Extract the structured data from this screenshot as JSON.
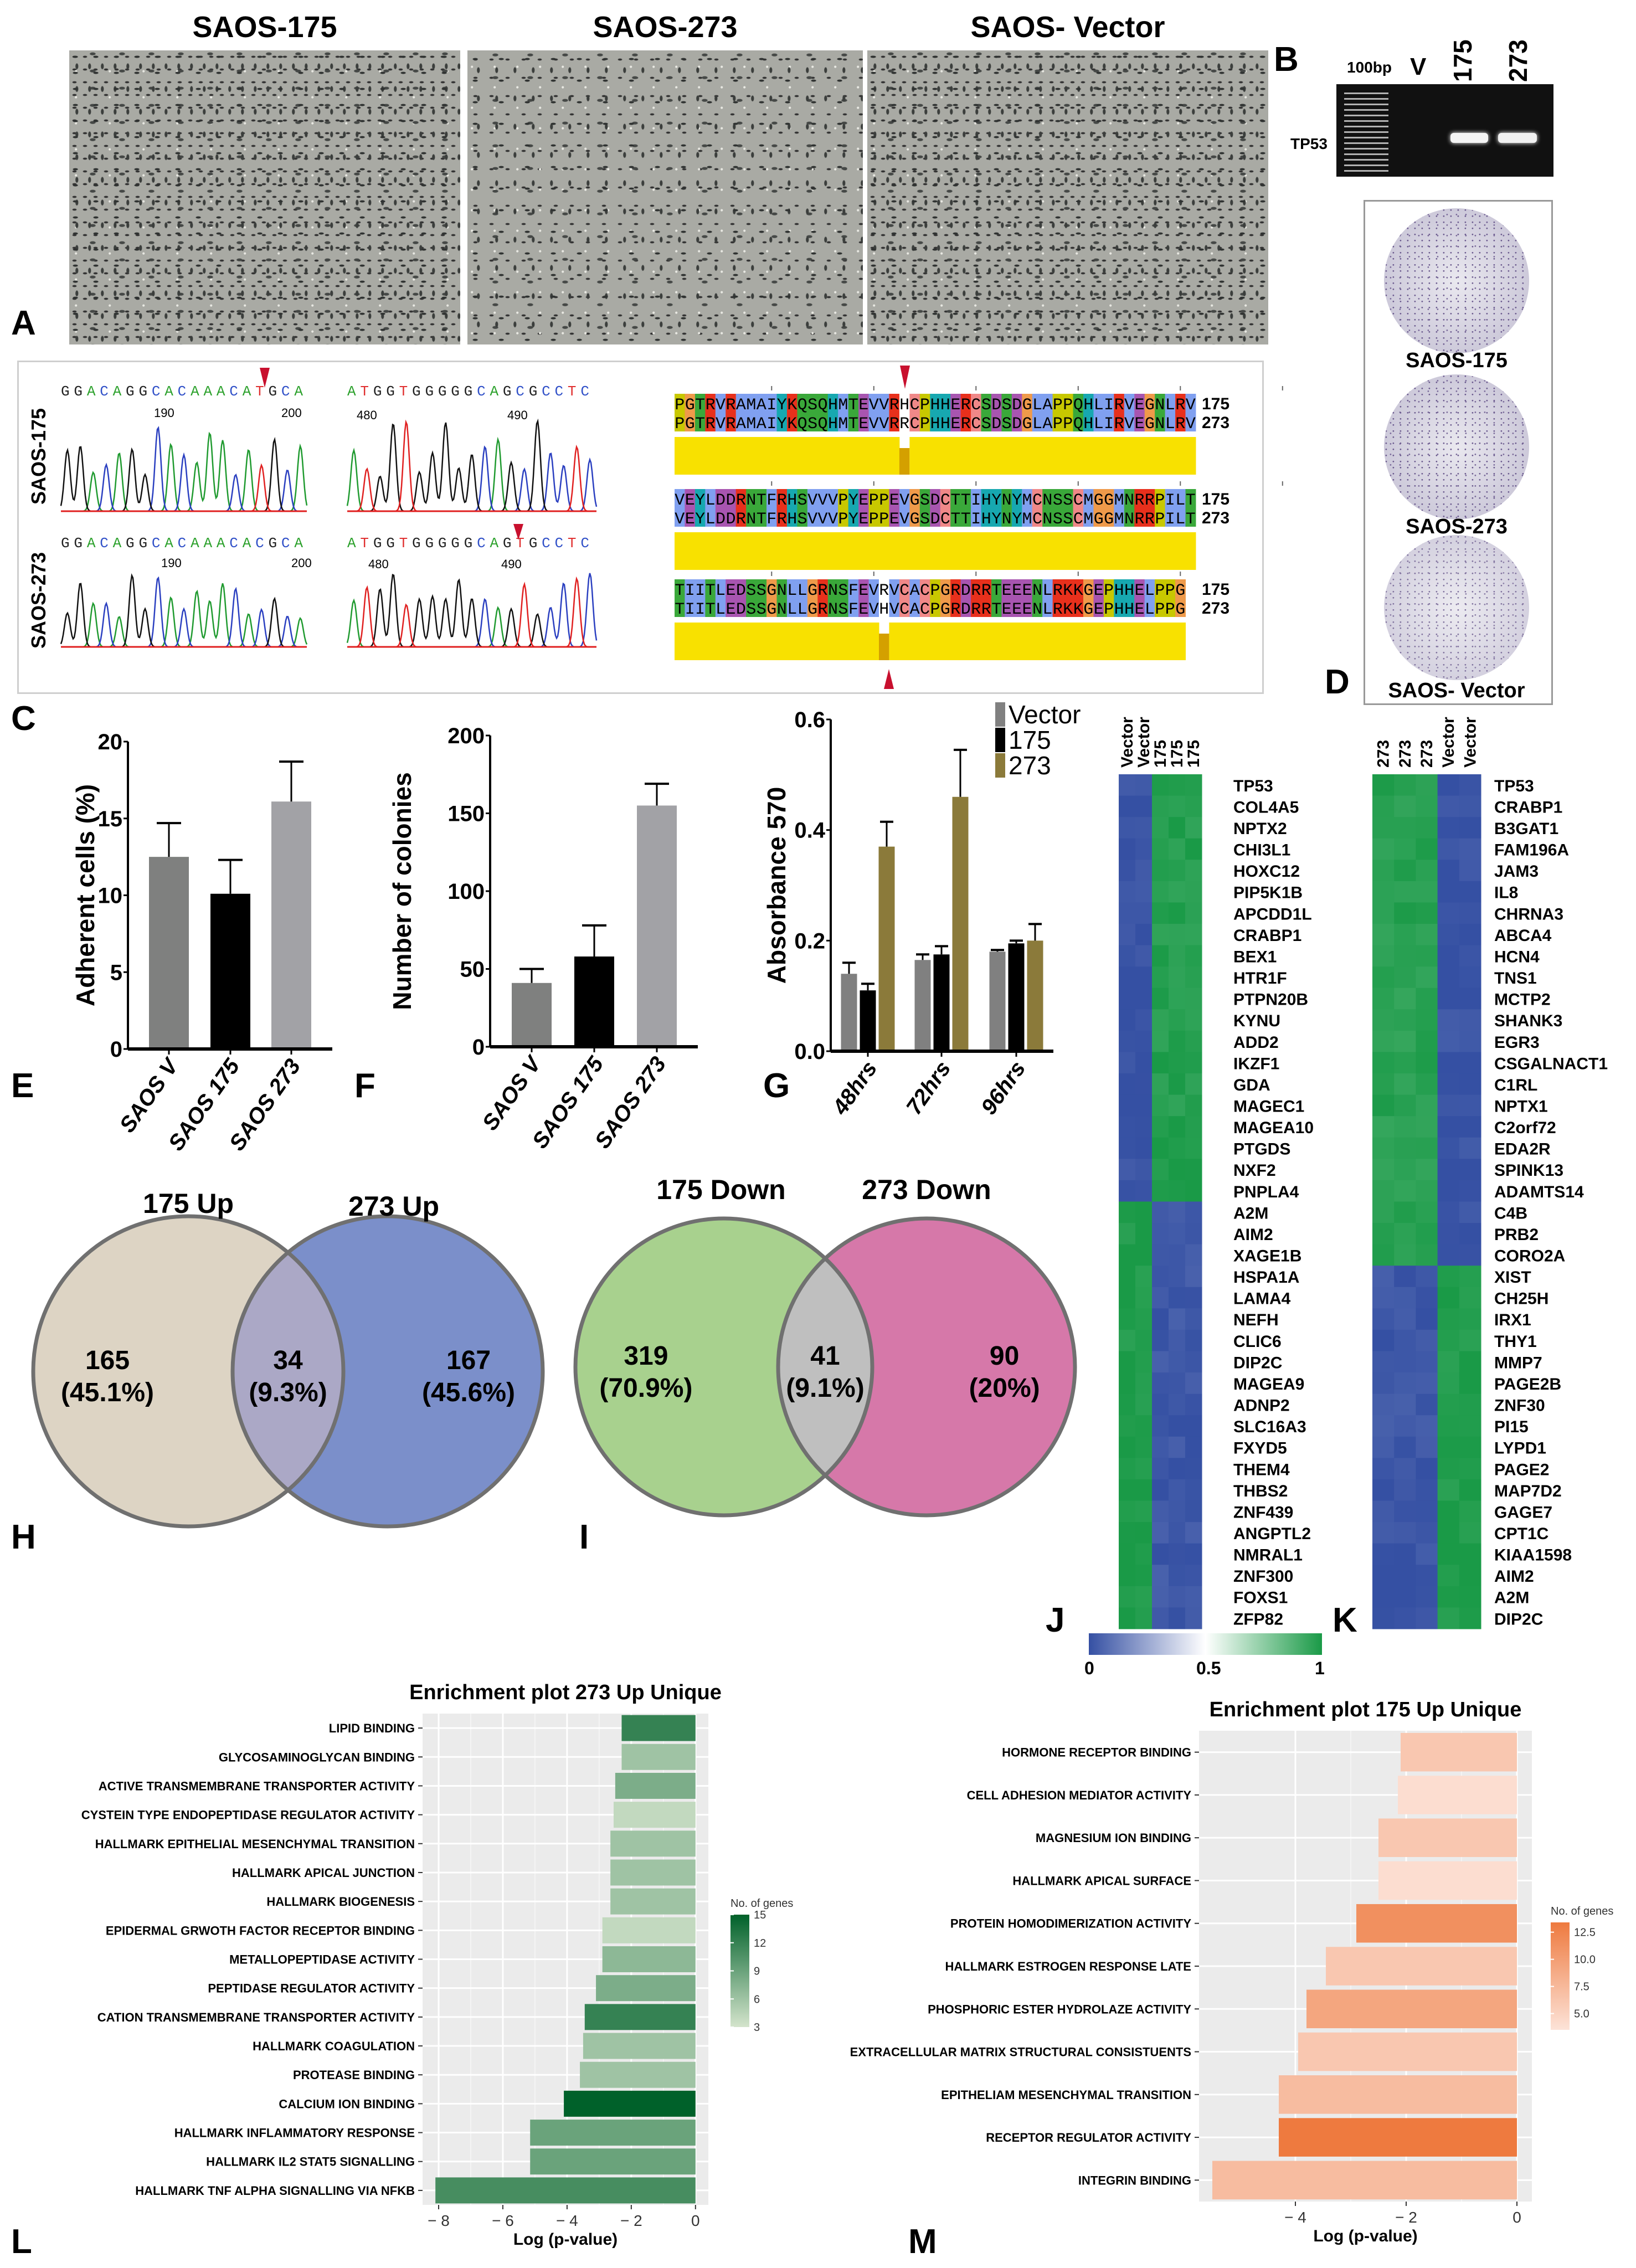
{
  "panel_labels": {
    "A": "A",
    "B": "B",
    "C": "C",
    "D": "D",
    "E": "E",
    "F": "F",
    "G": "G",
    "H": "H",
    "I": "I",
    "J": "J",
    "K": "K",
    "L": "L",
    "M": "M"
  },
  "micrographs": [
    {
      "title": "SAOS-175"
    },
    {
      "title": "SAOS-273"
    },
    {
      "title": "SAOS- Vector"
    }
  ],
  "gel": {
    "ladder": "100bp",
    "lanes": [
      "V",
      "175",
      "273"
    ],
    "band_label": "TP53"
  },
  "colony_plates": [
    "SAOS-175",
    "SAOS-273",
    "SAOS- Vector"
  ],
  "chromatograms": [
    {
      "label": "SAOS-175",
      "left_seq": "GGACAGGCACAAACATGCA",
      "left_ticks": [
        "190",
        "200"
      ],
      "right_seq": "ATGGTGGGGGCAGCGCCTC",
      "right_ticks": [
        "480",
        "490"
      ]
    },
    {
      "label": "SAOS-273",
      "left_seq": "GGACAGGCACAAACACGCA",
      "left_ticks": [
        "190",
        "200"
      ],
      "right_seq": "ATGGTGGGGGCAGTGCCTC",
      "right_ticks": [
        "480",
        "490"
      ]
    }
  ],
  "alignment": {
    "row_labels": [
      "175",
      "273"
    ],
    "blocks": [
      {
        "seq_175": "PGTRVRAMAIYKQSQHMTEVVRHCPHHERCSDSDGLAPPQHLIRVEGNLRV",
        "seq_273": "PGTRVRAMAIYKQSQHMTEVVRRCPHHERCSDSDGLAPPQHLIRVEGNLRV"
      },
      {
        "seq_175": "VEYLDDRNTFRHSVVVPYEPPEVGSDCTTIHYNYMCNSSCMGGMNRRPILT",
        "seq_273": "VEYLDDRNTFRHSVVVPYEPPEVGSDCTTIHYNYMCNSSCMGGMNRRPILT"
      },
      {
        "seq_175": "TIITLEDSSGNLLGRNSFEVRVCACPGRDRRTEEENLRKKGEPHHELPPG",
        "seq_273": "TIITLEDSSGNLLGRNSFEVHVCACPGRDRRTEEENLRKKGEPHHELPPG"
      }
    ]
  },
  "heatmap_colorbar": {
    "labels": [
      "0",
      "0.5",
      "1"
    ],
    "low_color": "#3550a3",
    "mid_color": "#ffffff",
    "high_color": "#1a9a47"
  },
  "chart_data": [
    {
      "id": "E",
      "type": "bar",
      "title": "",
      "xlabel": "",
      "ylabel": "Adherent cells (%)",
      "ylim": [
        0,
        20
      ],
      "yticks": [
        0,
        5,
        10,
        15,
        20
      ],
      "ytick_labels": [
        "0",
        "5",
        "10",
        "15",
        "20"
      ],
      "categories": [
        "SAOS V",
        "SAOS 175",
        "SAOS 273"
      ],
      "series": [
        {
          "name": "",
          "values": [
            12.5,
            10.1,
            16.1
          ],
          "errors": [
            2.2,
            2.2,
            2.6
          ]
        }
      ],
      "bar_colors": [
        "#7f807f",
        "#000000",
        "#a2a2a6"
      ]
    },
    {
      "id": "F",
      "type": "bar",
      "title": "",
      "xlabel": "",
      "ylabel": "Number of colonies",
      "ylim": [
        0,
        200
      ],
      "yticks": [
        0,
        50,
        100,
        150,
        200
      ],
      "ytick_labels": [
        "0",
        "50",
        "100",
        "150",
        "200"
      ],
      "categories": [
        "SAOS V",
        "SAOS 175",
        "SAOS 273"
      ],
      "series": [
        {
          "name": "",
          "values": [
            41,
            58,
            155
          ],
          "errors": [
            9,
            20,
            14
          ]
        }
      ],
      "bar_colors": [
        "#7f807f",
        "#000000",
        "#a2a2a6"
      ]
    },
    {
      "id": "G",
      "type": "bar",
      "title": "",
      "xlabel": "",
      "ylabel": "Absorbance 570",
      "ylim": [
        0,
        0.6
      ],
      "yticks": [
        0,
        0.2,
        0.4,
        0.6
      ],
      "ytick_labels": [
        "0.0",
        "0.2",
        "0.4",
        "0.6"
      ],
      "categories": [
        "48hrs",
        "72hrs",
        "96hrs"
      ],
      "legend": "top-right",
      "series": [
        {
          "name": "Vector",
          "values": [
            0.14,
            0.165,
            0.18
          ],
          "errors": [
            0.02,
            0.01,
            0.003
          ],
          "color": "#808080"
        },
        {
          "name": "175",
          "values": [
            0.11,
            0.175,
            0.195
          ],
          "errors": [
            0.012,
            0.015,
            0.005
          ],
          "color": "#000000"
        },
        {
          "name": "273",
          "values": [
            0.37,
            0.46,
            0.2
          ],
          "errors": [
            0.045,
            0.085,
            0.03
          ],
          "color": "#8b7a3a"
        }
      ]
    },
    {
      "id": "H",
      "type": "venn",
      "sets": [
        "175 Up",
        "273 Up"
      ],
      "regions": [
        {
          "count": "165",
          "percent": "(45.1%)"
        },
        {
          "count": "34",
          "percent": "(9.3%)"
        },
        {
          "count": "167",
          "percent": "(45.6%)"
        }
      ],
      "colors": [
        "#ddd4c4",
        "#7b8fca",
        "#aba8c6"
      ]
    },
    {
      "id": "I",
      "type": "venn",
      "sets": [
        "175 Down",
        "273 Down"
      ],
      "regions": [
        {
          "count": "319",
          "percent": "(70.9%)"
        },
        {
          "count": "41",
          "percent": "(9.1%)"
        },
        {
          "count": "90",
          "percent": "(20%)"
        }
      ],
      "colors": [
        "#a8d18e",
        "#d678a9",
        "#bfbfbf"
      ]
    },
    {
      "id": "J",
      "type": "heatmap",
      "columns": [
        "Vector",
        "Vector",
        "175",
        "175",
        "175"
      ],
      "groups": [
        {
          "genes": [
            "TP53",
            "COL4A5",
            "NPTX2",
            "CHI3L1",
            "HOXC12",
            "PIP5K1B",
            "APCDD1L",
            "CRABP1",
            "BEX1",
            "HTR1F",
            "PTPN20B",
            "KYNU",
            "ADD2",
            "IKZF1",
            "GDA",
            "MAGEC1",
            "MAGEA10",
            "PTGDS",
            "NXF2",
            "PNPLA4"
          ],
          "column_values": [
            0.02,
            0.02,
            0.95,
            0.95,
            0.95
          ]
        },
        {
          "genes": [
            "A2M",
            "AIM2",
            "XAGE1B",
            "HSPA1A",
            "LAMA4",
            "NEFH",
            "CLIC6",
            "DIP2C",
            "MAGEA9",
            "ADNP2",
            "SLC16A3",
            "FXYD5",
            "THEM4",
            "THBS2",
            "ZNF439",
            "ANGPTL2",
            "NMRAL1",
            "ZNF300",
            "FOXS1",
            "ZFP82"
          ],
          "column_values": [
            0.98,
            0.98,
            0.05,
            0.05,
            0.05
          ]
        }
      ]
    },
    {
      "id": "K",
      "type": "heatmap",
      "columns": [
        "273",
        "273",
        "273",
        "Vector",
        "Vector"
      ],
      "groups": [
        {
          "genes": [
            "TP53",
            "CRABP1",
            "B3GAT1",
            "FAM196A",
            "JAM3",
            "IL8",
            "CHRNA3",
            "ABCA4",
            "HCN4",
            "TNS1",
            "MCTP2",
            "SHANK3",
            "EGR3",
            "CSGALNACT1",
            "C1RL",
            "NPTX1",
            "C2orf72",
            "EDA2R",
            "SPINK13",
            "ADAMTS14",
            "C4B",
            "PRB2",
            "CORO2A"
          ],
          "column_values": [
            0.93,
            0.93,
            0.93,
            0.02,
            0.02
          ]
        },
        {
          "genes": [
            "XIST",
            "CH25H",
            "IRX1",
            "THY1",
            "MMP7",
            "PAGE2B",
            "ZNF30",
            "PI15",
            "LYPD1",
            "PAGE2",
            "MAP7D2",
            "GAGE7",
            "CPT1C",
            "KIAA1598",
            "AIM2",
            "A2M",
            "DIP2C"
          ],
          "column_values": [
            0.05,
            0.05,
            0.05,
            0.98,
            0.98
          ]
        }
      ]
    },
    {
      "id": "L",
      "type": "bar",
      "orientation": "horizontal",
      "title": "Enrichment plot 273 Up Unique",
      "xlabel": "Log (p-value)",
      "xlim": [
        -8.5,
        0.4
      ],
      "xticks": [
        -8,
        -6,
        -4,
        -2,
        0
      ],
      "xtick_labels": [
        "− 8",
        "− 6",
        "− 4",
        "− 2",
        "0"
      ],
      "legend_title": "No. of genes",
      "legend_ticks": [
        15,
        12,
        9,
        6,
        3
      ],
      "legend_tick_labels": [
        "15",
        "12",
        "9",
        "6",
        "3"
      ],
      "color_range": [
        "#d4e4cc",
        "#00612a"
      ],
      "count_range": [
        3,
        15
      ],
      "categories": [
        "LIPID BINDING",
        "GLYCOSAMINOGLYCAN BINDING",
        "ACTIVE TRANSMEMBRANE TRANSPORTER ACTIVITY",
        "CYSTEIN TYPE ENDOPEPTIDASE REGULATOR ACTIVITY",
        "HALLMARK EPITHELIAL MESENCHYMAL TRANSITION",
        "HALLMARK APICAL JUNCTION",
        "HALLMARK BIOGENESIS",
        "EPIDERMAL GRWOTH FACTOR RECEPTOR BINDING",
        "METALLOPEPTIDASE ACTIVITY",
        "PEPTIDASE REGULATOR ACTIVITY",
        "CATION TRANSMEMBRANE TRANSPORTER ACTIVITY",
        "HALLMARK COAGULATION",
        "PROTEASE BINDING",
        "CALCIUM ION BINDING",
        "HALLMARK INFLAMMATORY RESPONSE",
        "HALLMARK  IL2 STAT5 SIGNALLING",
        "HALLMARK TNF ALPHA SIGNALLING VIA NFKB"
      ],
      "values": [
        -2.3,
        -2.3,
        -2.5,
        -2.55,
        -2.65,
        -2.65,
        -2.65,
        -2.9,
        -2.9,
        -3.1,
        -3.45,
        -3.5,
        -3.6,
        -4.1,
        -5.15,
        -5.15,
        -8.1
      ],
      "gene_counts": [
        12,
        6,
        8,
        4,
        6,
        6,
        6,
        4,
        7,
        8,
        12,
        6,
        6,
        15,
        9,
        9,
        11
      ]
    },
    {
      "id": "M",
      "type": "bar",
      "orientation": "horizontal",
      "title": "Enrichment plot 175 Up Unique",
      "xlabel": "Log (p-value)",
      "xlim": [
        -5.74,
        0.27
      ],
      "xticks": [
        -4,
        -2,
        0
      ],
      "xtick_labels": [
        "− 4",
        "− 2",
        "0"
      ],
      "legend_title": "No. of genes",
      "legend_ticks": [
        12.5,
        10,
        7.5,
        5
      ],
      "legend_tick_labels": [
        "12.5",
        "10.0",
        "7.5",
        "5.0"
      ],
      "color_range": [
        "#fde3d8",
        "#ee7a3f"
      ],
      "count_range": [
        3.5,
        13
      ],
      "categories": [
        "HORMONE RECEPTOR BINDING",
        "CELL ADHESION MEDIATOR ACTIVITY",
        "MAGNESIUM ION BINDING",
        "HALLMARK APICAL SURFACE",
        "PROTEIN HOMODIMERIZATION ACTIVITY",
        "HALLMARK ESTROGEN RESPONSE LATE",
        "PHOSPHORIC ESTER HYDROLAZE ACTIVITY",
        "EXTRACELLULAR MATRIX STRUCTURAL CONSISTUENTS",
        "EPITHELIAM MESENCHYMAL TRANSITION",
        "RECEPTOR REGULATOR ACTIVITY",
        "INTEGRIN BINDING"
      ],
      "values": [
        -2.1,
        -2.15,
        -2.5,
        -2.5,
        -2.9,
        -3.45,
        -3.8,
        -3.95,
        -4.3,
        -4.3,
        -5.5
      ],
      "gene_counts": [
        6,
        4,
        6,
        4,
        11,
        6,
        9,
        6,
        7,
        13,
        7
      ]
    }
  ]
}
